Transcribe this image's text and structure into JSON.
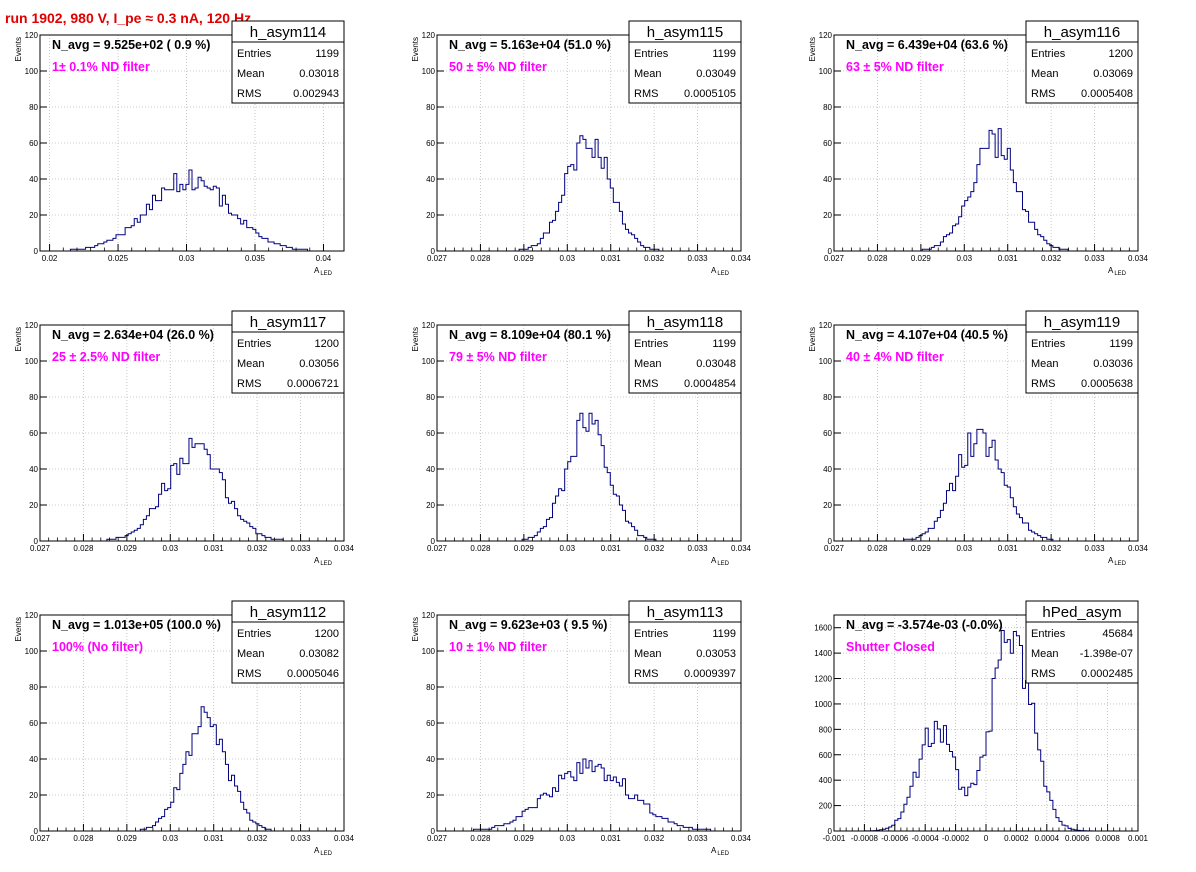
{
  "page": {
    "title": "run 1902,   980 V, I_pe ≈ 0.3 nA, 120 Hz"
  },
  "stats_labels": {
    "entries": "Entries",
    "mean": "Mean",
    "rms": "RMS"
  },
  "colors": {
    "histogram": "#000080",
    "annotation": "#ff00ff",
    "title_red": "#e00000",
    "grid": "#bbbbbb"
  },
  "chart_data": [
    {
      "type": "bar",
      "name": "h_asym114",
      "navg": "N_avg = 9.525e+02 ( 0.9 %)",
      "filter": "1± 0.1% ND filter",
      "entries": "1199",
      "mean": "0.03018",
      "rms": "0.002943",
      "ylabel": "Events",
      "xlabel": "A_LED",
      "xlim": [
        0.0193,
        0.0415
      ],
      "ylim": [
        0,
        120
      ],
      "xticks": [
        0.02,
        0.025,
        0.03,
        0.035,
        0.04
      ],
      "xtick_labels": [
        "0.02",
        "0.025",
        "0.03",
        "0.035",
        "0.04"
      ],
      "yticks": [
        0,
        20,
        40,
        60,
        80,
        100,
        120
      ],
      "ytick_labels": [
        "0",
        "20",
        "40",
        "60",
        "80",
        "100",
        "120"
      ],
      "shape": {
        "peaks": [
          [
            0.0302,
            0.002943,
            1.0
          ]
        ],
        "amp": 40,
        "seed": 114
      }
    },
    {
      "type": "bar",
      "name": "h_asym115",
      "navg": "N_avg = 5.163e+04 (51.0 %)",
      "filter": "50 ± 5% ND filter",
      "entries": "1199",
      "mean": "0.03049",
      "rms": "0.0005105",
      "ylabel": "Events",
      "xlabel": "A_LED",
      "xlim": [
        0.027,
        0.034
      ],
      "ylim": [
        0,
        120
      ],
      "xticks": [
        0.027,
        0.028,
        0.029,
        0.03,
        0.031,
        0.032,
        0.033,
        0.034
      ],
      "xtick_labels": [
        "0.027",
        "0.028",
        "0.029",
        "0.03",
        "0.031",
        "0.032",
        "0.033",
        "0.034"
      ],
      "yticks": [
        0,
        20,
        40,
        60,
        80,
        100,
        120
      ],
      "ytick_labels": [
        "0",
        "20",
        "40",
        "60",
        "80",
        "100",
        "120"
      ],
      "shape": {
        "peaks": [
          [
            0.03049,
            0.00051,
            1.0
          ]
        ],
        "amp": 62,
        "seed": 115
      }
    },
    {
      "type": "bar",
      "name": "h_asym116",
      "navg": "N_avg = 6.439e+04 (63.6 %)",
      "filter": "63 ± 5% ND filter",
      "entries": "1200",
      "mean": "0.03069",
      "rms": "0.0005408",
      "ylabel": "Events",
      "xlabel": "A_LED",
      "xlim": [
        0.027,
        0.034
      ],
      "ylim": [
        0,
        120
      ],
      "xticks": [
        0.027,
        0.028,
        0.029,
        0.03,
        0.031,
        0.032,
        0.033,
        0.034
      ],
      "xtick_labels": [
        "0.027",
        "0.028",
        "0.029",
        "0.03",
        "0.031",
        "0.032",
        "0.033",
        "0.034"
      ],
      "yticks": [
        0,
        20,
        40,
        60,
        80,
        100,
        120
      ],
      "ytick_labels": [
        "0",
        "20",
        "40",
        "60",
        "80",
        "100",
        "120"
      ],
      "shape": {
        "peaks": [
          [
            0.03069,
            0.00054,
            1.0
          ]
        ],
        "amp": 60,
        "seed": 116
      }
    },
    {
      "type": "bar",
      "name": "h_asym117",
      "navg": "N_avg = 2.634e+04 (26.0 %)",
      "filter": "25 ± 2.5% ND filter",
      "entries": "1200",
      "mean": "0.03056",
      "rms": "0.0006721",
      "ylabel": "Events",
      "xlabel": "A_LED",
      "xlim": [
        0.027,
        0.034
      ],
      "ylim": [
        0,
        120
      ],
      "xticks": [
        0.027,
        0.028,
        0.029,
        0.03,
        0.031,
        0.032,
        0.033,
        0.034
      ],
      "xtick_labels": [
        "0.027",
        "0.028",
        "0.029",
        "0.03",
        "0.031",
        "0.032",
        "0.033",
        "0.034"
      ],
      "yticks": [
        0,
        20,
        40,
        60,
        80,
        100,
        120
      ],
      "ytick_labels": [
        "0",
        "20",
        "40",
        "60",
        "80",
        "100",
        "120"
      ],
      "shape": {
        "peaks": [
          [
            0.03056,
            0.00067,
            1.0
          ]
        ],
        "amp": 50,
        "seed": 117
      }
    },
    {
      "type": "bar",
      "name": "h_asym118",
      "navg": "N_avg = 8.109e+04 (80.1 %)",
      "filter": "79 ± 5% ND filter",
      "entries": "1199",
      "mean": "0.03048",
      "rms": "0.0004854",
      "ylabel": "Events",
      "xlabel": "A_LED",
      "xlim": [
        0.027,
        0.034
      ],
      "ylim": [
        0,
        120
      ],
      "xticks": [
        0.027,
        0.028,
        0.029,
        0.03,
        0.031,
        0.032,
        0.033,
        0.034
      ],
      "xtick_labels": [
        "0.027",
        "0.028",
        "0.029",
        "0.03",
        "0.031",
        "0.032",
        "0.033",
        "0.034"
      ],
      "yticks": [
        0,
        20,
        40,
        60,
        80,
        100,
        120
      ],
      "ytick_labels": [
        "0",
        "20",
        "40",
        "60",
        "80",
        "100",
        "120"
      ],
      "shape": {
        "peaks": [
          [
            0.03048,
            0.00049,
            1.0
          ]
        ],
        "amp": 65,
        "seed": 118
      }
    },
    {
      "type": "bar",
      "name": "h_asym119",
      "navg": "N_avg = 4.107e+04 (40.5 %)",
      "filter": "40 ± 4% ND filter",
      "entries": "1199",
      "mean": "0.03036",
      "rms": "0.0005638",
      "ylabel": "Events",
      "xlabel": "A_LED",
      "xlim": [
        0.027,
        0.034
      ],
      "ylim": [
        0,
        120
      ],
      "xticks": [
        0.027,
        0.028,
        0.029,
        0.03,
        0.031,
        0.032,
        0.033,
        0.034
      ],
      "xtick_labels": [
        "0.027",
        "0.028",
        "0.029",
        "0.03",
        "0.031",
        "0.032",
        "0.033",
        "0.034"
      ],
      "yticks": [
        0,
        20,
        40,
        60,
        80,
        100,
        120
      ],
      "ytick_labels": [
        "0",
        "20",
        "40",
        "60",
        "80",
        "100",
        "120"
      ],
      "shape": {
        "peaks": [
          [
            0.03036,
            0.00056,
            1.0
          ]
        ],
        "amp": 58,
        "seed": 119
      }
    },
    {
      "type": "bar",
      "name": "h_asym112",
      "navg": "N_avg = 1.013e+05 (100.0 %)",
      "filter": "100% (No filter)",
      "entries": "1200",
      "mean": "0.03082",
      "rms": "0.0005046",
      "ylabel": "Events",
      "xlabel": "A_LED",
      "xlim": [
        0.027,
        0.034
      ],
      "ylim": [
        0,
        120
      ],
      "xticks": [
        0.027,
        0.028,
        0.029,
        0.03,
        0.031,
        0.032,
        0.033,
        0.034
      ],
      "xtick_labels": [
        "0.027",
        "0.028",
        "0.029",
        "0.03",
        "0.031",
        "0.032",
        "0.033",
        "0.034"
      ],
      "yticks": [
        0,
        20,
        40,
        60,
        80,
        100,
        120
      ],
      "ytick_labels": [
        "0",
        "20",
        "40",
        "60",
        "80",
        "100",
        "120"
      ],
      "shape": {
        "peaks": [
          [
            0.03082,
            0.0005,
            1.0
          ]
        ],
        "amp": 60,
        "seed": 112
      }
    },
    {
      "type": "bar",
      "name": "h_asym113",
      "navg": "N_avg = 9.623e+03 ( 9.5 %)",
      "filter": "10 ± 1% ND filter",
      "entries": "1199",
      "mean": "0.03053",
      "rms": "0.0009397",
      "ylabel": "Events",
      "xlabel": "A_LED",
      "xlim": [
        0.027,
        0.034
      ],
      "ylim": [
        0,
        120
      ],
      "xticks": [
        0.027,
        0.028,
        0.029,
        0.03,
        0.031,
        0.032,
        0.033,
        0.034
      ],
      "xtick_labels": [
        "0.027",
        "0.028",
        "0.029",
        "0.03",
        "0.031",
        "0.032",
        "0.033",
        "0.034"
      ],
      "yticks": [
        0,
        20,
        40,
        60,
        80,
        100,
        120
      ],
      "ytick_labels": [
        "0",
        "20",
        "40",
        "60",
        "80",
        "100",
        "120"
      ],
      "shape": {
        "peaks": [
          [
            0.03053,
            0.00094,
            1.0
          ]
        ],
        "amp": 35,
        "seed": 113
      }
    },
    {
      "type": "bar",
      "name": "hPed_asym",
      "navg": "N_avg = -3.574e-03 (-0.0%)",
      "filter": "Shutter Closed",
      "entries": "45684",
      "mean": "-1.398e-07",
      "rms": "0.0002485",
      "ylabel": "",
      "xlabel": "",
      "xlim": [
        -0.001,
        0.001
      ],
      "ylim": [
        0,
        1700
      ],
      "xticks": [
        -0.001,
        -0.0008,
        -0.0006,
        -0.0004,
        -0.0002,
        0,
        0.0002,
        0.0004,
        0.0006,
        0.0008,
        0.001
      ],
      "xtick_labels": [
        "-0.001",
        "-0.0008",
        "-0.0006",
        "-0.0004",
        "-0.0002",
        "0",
        "0.0002",
        "0.0004",
        "0.0006",
        "0.0008",
        "0.001"
      ],
      "yticks": [
        0,
        200,
        400,
        600,
        800,
        1000,
        1200,
        1400,
        1600
      ],
      "ytick_labels": [
        "0",
        "200",
        "400",
        "600",
        "800",
        "1000",
        "1200",
        "1400",
        "1600"
      ],
      "shape": {
        "peaks": [
          [
            -0.00033,
            0.00012,
            0.52
          ],
          [
            0.00017,
            0.00013,
            1.0
          ]
        ],
        "amp": 1580,
        "seed": 200
      }
    }
  ]
}
